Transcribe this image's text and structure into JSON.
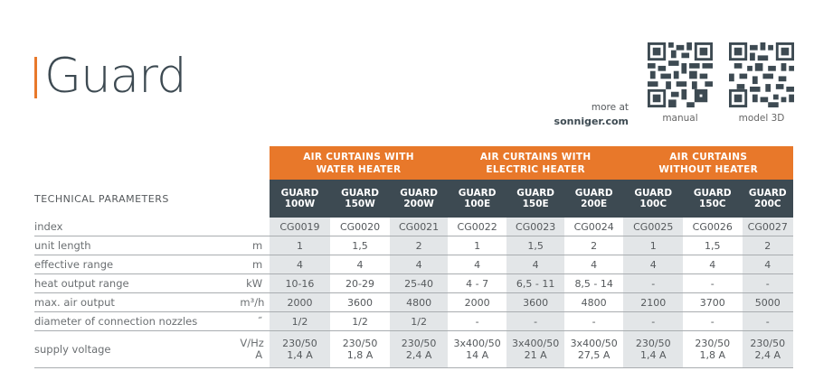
{
  "header": {
    "title": "Guard",
    "more_at": "more at",
    "website": "sonniger.com",
    "qr_codes": [
      {
        "label": "manual",
        "icon": "qr-code-icon"
      },
      {
        "label": "model 3D",
        "icon": "qr-code-icon"
      }
    ]
  },
  "colors": {
    "accent": "#e8782a",
    "dark_header": "#3d4a52",
    "shaded_column": "#e3e6e8",
    "rule": "#a9adb0"
  },
  "table": {
    "section_label": "TECHNICAL PARAMETERS",
    "groups": [
      {
        "line1": "AIR CURTAINS WITH",
        "line2": "WATER HEATER",
        "span": 3
      },
      {
        "line1": "AIR CURTAINS WITH",
        "line2": "ELECTRIC HEATER",
        "span": 3
      },
      {
        "line1": "AIR CURTAINS",
        "line2": "WITHOUT HEATER",
        "span": 3
      }
    ],
    "models": [
      {
        "line1": "GUARD",
        "line2": "100W"
      },
      {
        "line1": "GUARD",
        "line2": "150W"
      },
      {
        "line1": "GUARD",
        "line2": "200W"
      },
      {
        "line1": "GUARD",
        "line2": "100E"
      },
      {
        "line1": "GUARD",
        "line2": "150E"
      },
      {
        "line1": "GUARD",
        "line2": "200E"
      },
      {
        "line1": "GUARD",
        "line2": "100C"
      },
      {
        "line1": "GUARD",
        "line2": "150C"
      },
      {
        "line1": "GUARD",
        "line2": "200C"
      }
    ],
    "rows": [
      {
        "label": "index",
        "unit": "",
        "values": [
          "CG0019",
          "CG0020",
          "CG0021",
          "CG0022",
          "CG0023",
          "CG0024",
          "CG0025",
          "CG0026",
          "CG0027"
        ]
      },
      {
        "label": "unit length",
        "unit": "m",
        "values": [
          "1",
          "1,5",
          "2",
          "1",
          "1,5",
          "2",
          "1",
          "1,5",
          "2"
        ]
      },
      {
        "label": "effective range",
        "unit": "m",
        "values": [
          "4",
          "4",
          "4",
          "4",
          "4",
          "4",
          "4",
          "4",
          "4"
        ]
      },
      {
        "label": "heat output range",
        "unit": "kW",
        "values": [
          "10-16",
          "20-29",
          "25-40",
          "4 - 7",
          "6,5 - 11",
          "8,5 - 14",
          "-",
          "-",
          "-"
        ]
      },
      {
        "label": "max. air output",
        "unit": "m³/h",
        "values": [
          "2000",
          "3600",
          "4800",
          "2000",
          "3600",
          "4800",
          "2100",
          "3700",
          "5000"
        ]
      },
      {
        "label": "diameter of connection nozzles",
        "unit": "˝",
        "values": [
          "1/2",
          "1/2",
          "1/2",
          "-",
          "-",
          "-",
          "-",
          "-",
          "-"
        ]
      }
    ],
    "supply": {
      "label": "supply voltage",
      "unit1": "V/Hz",
      "unit2": "A",
      "voltage": [
        "230/50",
        "230/50",
        "230/50",
        "3x400/50",
        "3x400/50",
        "3x400/50",
        "230/50",
        "230/50",
        "230/50"
      ],
      "current": [
        "1,4 A",
        "1,8 A",
        "2,4 A",
        "14 A",
        "21 A",
        "27,5 A",
        "1,4 A",
        "1,8 A",
        "2,4 A"
      ]
    }
  }
}
